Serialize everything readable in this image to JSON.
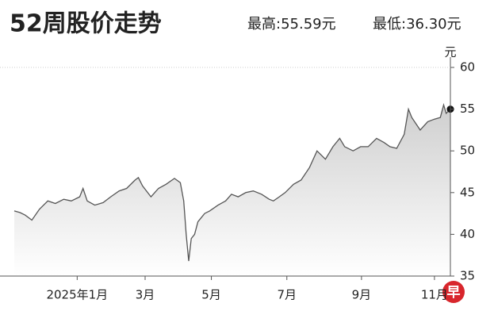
{
  "chart_data": {
    "type": "area-line",
    "title": "52周股价走势",
    "high_label": "最高:55.59元",
    "low_label": "最低:36.30元",
    "y_unit": "元",
    "logo": "早",
    "color": "#111111",
    "x": [
      0,
      0.7,
      1.3,
      2.1,
      3.0,
      4.0,
      4.9,
      5.9,
      6.8,
      7.8,
      8.2,
      8.7,
      9.6,
      10.6,
      11.5,
      12.5,
      13.4,
      14.4,
      14.8,
      15.3,
      16.3,
      17.2,
      18.1,
      19.1,
      19.8,
      20.2,
      20.5,
      20.8,
      21.1,
      21.5,
      21.9,
      22.7,
      23.3,
      24.3,
      25.2,
      25.9,
      26.7,
      27.6,
      28.5,
      29.5,
      30.4,
      30.9,
      31.6,
      32.3,
      33.3,
      34.2,
      35.2,
      36.1,
      37.1,
      38.0,
      38.8,
      39.4,
      40.4,
      41.3,
      42.2,
      43.2,
      44.1,
      44.8,
      45.6,
      46.5,
      47.0,
      47.4,
      48.4,
      49.3,
      50.1,
      50.8,
      51.2,
      51.5,
      52.0
    ],
    "values": [
      42.8,
      42.6,
      42.3,
      41.7,
      43.0,
      44.0,
      43.7,
      44.2,
      44.0,
      44.5,
      45.5,
      44.0,
      43.5,
      43.8,
      44.5,
      45.2,
      45.5,
      46.5,
      46.8,
      45.8,
      44.5,
      45.5,
      46.0,
      46.7,
      46.2,
      44.0,
      40.0,
      36.8,
      39.5,
      40.0,
      41.5,
      42.5,
      42.8,
      43.5,
      44.0,
      44.8,
      44.5,
      45.0,
      45.2,
      44.8,
      44.2,
      44.0,
      44.5,
      45.0,
      46.0,
      46.5,
      48.0,
      50.0,
      49.0,
      50.5,
      51.5,
      50.5,
      50.0,
      50.5,
      50.5,
      51.5,
      51.0,
      50.5,
      50.3,
      52.0,
      55.0,
      54.0,
      52.5,
      53.5,
      53.8,
      54.0,
      55.5,
      54.5,
      55.0
    ],
    "xlim": [
      0,
      52
    ],
    "xticks": [
      {
        "value": 7.5,
        "label": "2025年1月"
      },
      {
        "value": 15.6,
        "label": "3月"
      },
      {
        "value": 23.5,
        "label": "5月"
      },
      {
        "value": 32.5,
        "label": "7月"
      },
      {
        "value": 41.4,
        "label": "9月"
      },
      {
        "value": 50.1,
        "label": "11月"
      }
    ],
    "ylim": [
      35,
      60
    ],
    "yticks": [
      35,
      40,
      45,
      50,
      55,
      60
    ]
  }
}
